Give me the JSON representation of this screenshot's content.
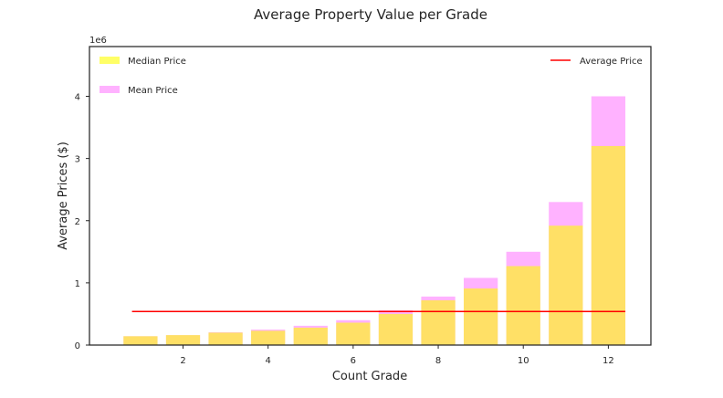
{
  "chart_data": {
    "type": "bar",
    "title": "Average Property Value per Grade",
    "xlabel": "Count Grade",
    "ylabel": "Average Prices ($)",
    "y_offset_label": "1e6",
    "x": [
      1,
      2,
      3,
      4,
      5,
      6,
      7,
      8,
      9,
      10,
      11,
      12
    ],
    "xlim": [
      -0.2,
      13.0
    ],
    "ylim": [
      0,
      4800000
    ],
    "x_ticks": [
      2,
      4,
      6,
      8,
      10,
      12
    ],
    "y_ticks": [
      0,
      1000000,
      2000000,
      3000000,
      4000000
    ],
    "y_tick_labels": [
      "0",
      "1",
      "2",
      "3",
      "4"
    ],
    "series": [
      {
        "name": "Mean Price",
        "kind": "bar",
        "color": "#ff00ff",
        "opacity": 0.3,
        "values": [
          142000,
          160000,
          205000,
          248000,
          310000,
          400000,
          560000,
          780000,
          1080000,
          1500000,
          2300000,
          4000000
        ]
      },
      {
        "name": "Median Price",
        "kind": "bar",
        "color": "#ffff00",
        "opacity": 0.6,
        "values": [
          142000,
          160000,
          200000,
          230000,
          280000,
          360000,
          500000,
          720000,
          910000,
          1270000,
          1920000,
          3200000
        ]
      },
      {
        "name": "Average Price",
        "kind": "line",
        "color": "#ff0000",
        "x_range": [
          0.8,
          12.4
        ],
        "value": 540000
      }
    ],
    "legend_left": [
      "Median Price",
      "Mean Price"
    ],
    "legend_right": [
      "Average Price"
    ],
    "grid": false
  }
}
